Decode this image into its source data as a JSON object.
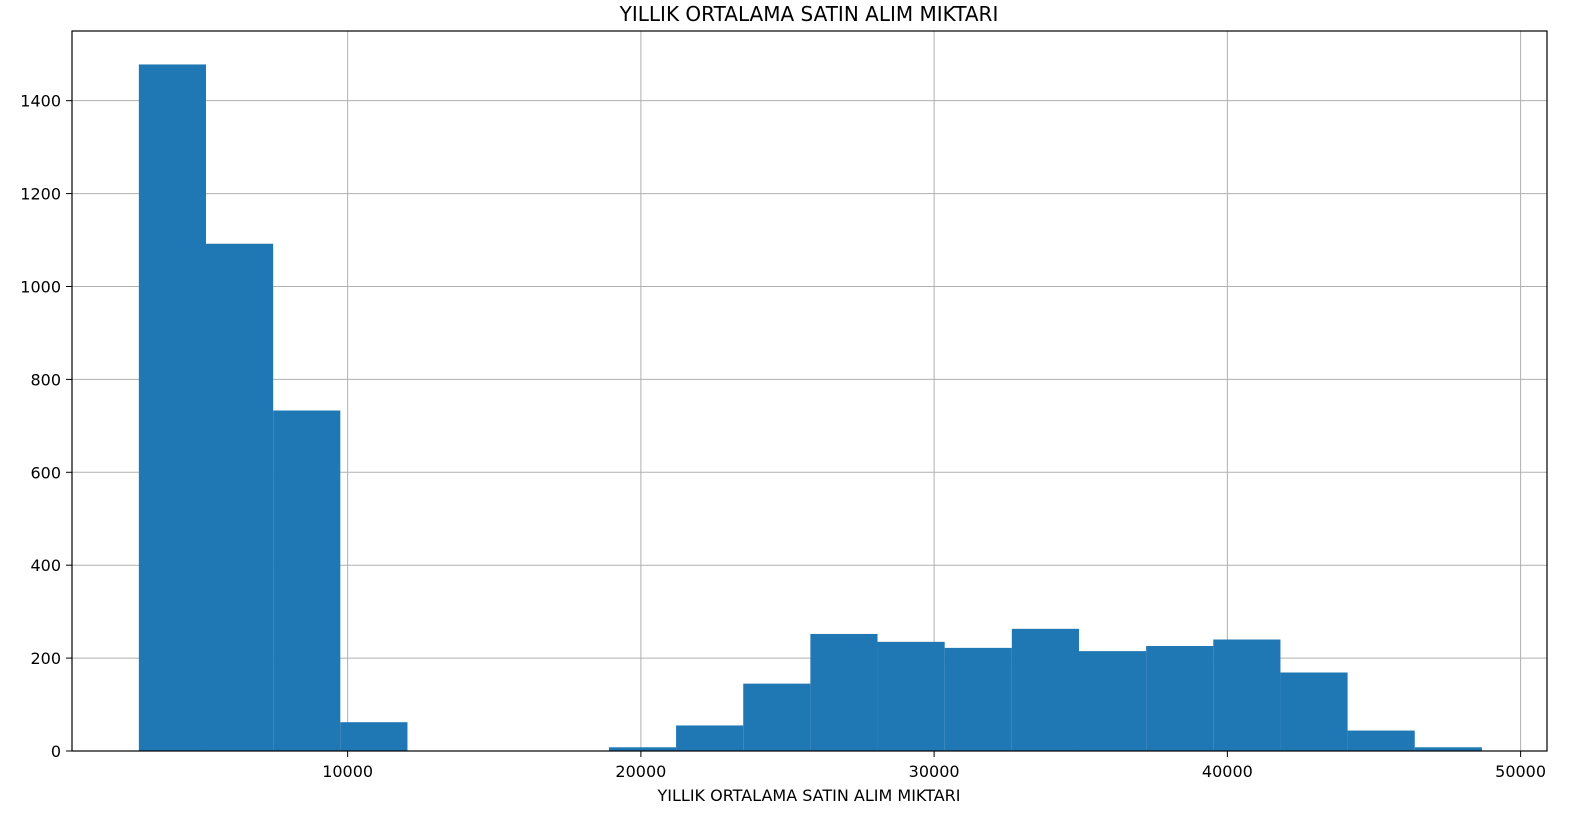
{
  "chart_data": {
    "type": "bar",
    "subtype": "histogram",
    "title": "YILLIK ORTALAMA SATIN ALIM MIKTARI",
    "xlabel": "YILLIK ORTALAMA SATIN ALIM MIKTARI",
    "ylabel": "",
    "xlim": [
      600,
      50900
    ],
    "ylim": [
      0,
      1550
    ],
    "grid": true,
    "color": "#1f77b4",
    "bin_edges": [
      2880,
      5170,
      7460,
      9750,
      12040,
      14330,
      16620,
      18910,
      21200,
      23490,
      25780,
      28070,
      30360,
      32650,
      34940,
      37230,
      39520,
      41810,
      44100,
      46390,
      48680
    ],
    "counts": [
      1478,
      1092,
      733,
      62,
      0,
      0,
      0,
      8,
      55,
      145,
      252,
      235,
      222,
      263,
      215,
      226,
      240,
      169,
      44,
      8
    ],
    "x_ticks": [
      {
        "value": 10000,
        "label": "10000"
      },
      {
        "value": 20000,
        "label": "20000"
      },
      {
        "value": 30000,
        "label": "30000"
      },
      {
        "value": 40000,
        "label": "40000"
      },
      {
        "value": 50000,
        "label": "50000"
      }
    ],
    "y_ticks": [
      {
        "value": 0,
        "label": "0"
      },
      {
        "value": 200,
        "label": "200"
      },
      {
        "value": 400,
        "label": "400"
      },
      {
        "value": 600,
        "label": "600"
      },
      {
        "value": 800,
        "label": "800"
      },
      {
        "value": 1000,
        "label": "1000"
      },
      {
        "value": 1200,
        "label": "1200"
      },
      {
        "value": 1400,
        "label": "1400"
      }
    ]
  }
}
